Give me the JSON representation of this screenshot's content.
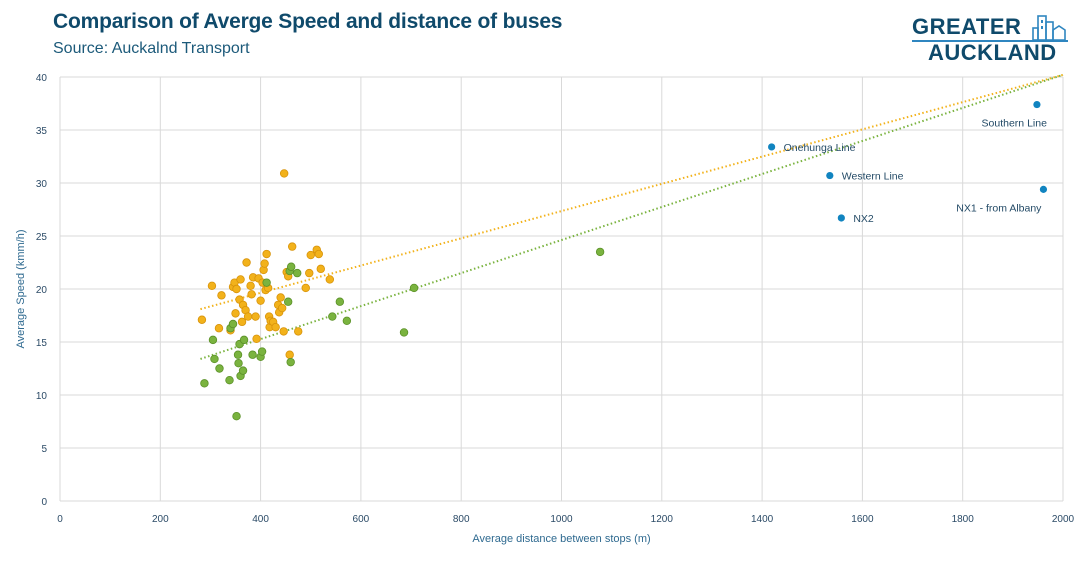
{
  "header": {
    "title": "Comparison of Averge Speed and distance of buses",
    "subtitle": "Source: Auckalnd Transport"
  },
  "logo": {
    "line1": "GREATER",
    "line2": "AUCKLAND",
    "icon": "city-buildings-icon"
  },
  "colors": {
    "title": "#0f4a6b",
    "orange": "#f2b21b",
    "orange_edge": "#d8930a",
    "green": "#7ab33f",
    "green_edge": "#5b9128",
    "blue": "#1184c0",
    "grid": "#d9d9d9"
  },
  "chart_data": {
    "type": "scatter",
    "title": "Comparison of Averge Speed and distance of buses",
    "subtitle": "Source: Auckalnd Transport",
    "xlabel": "Average distance between stops (m)",
    "ylabel": "Average Speed (kmm/h)",
    "xlim": [
      0,
      2000
    ],
    "ylim": [
      0,
      40
    ],
    "xticks": [
      0,
      200,
      400,
      600,
      800,
      1000,
      1200,
      1400,
      1600,
      1800,
      2000
    ],
    "yticks": [
      0,
      5,
      10,
      15,
      20,
      25,
      30,
      35,
      40
    ],
    "grid": true,
    "legend": "none",
    "series": [
      {
        "name": "Orange bus routes",
        "color": "#f2b21b",
        "points": [
          [
            283,
            17.1
          ],
          [
            303,
            20.3
          ],
          [
            317,
            16.3
          ],
          [
            322,
            19.4
          ],
          [
            340,
            16.1
          ],
          [
            345,
            20.2
          ],
          [
            348,
            20.6
          ],
          [
            350,
            17.7
          ],
          [
            352,
            20.0
          ],
          [
            358,
            19.0
          ],
          [
            360,
            20.9
          ],
          [
            363,
            16.9
          ],
          [
            365,
            18.5
          ],
          [
            370,
            18.0
          ],
          [
            372,
            22.5
          ],
          [
            375,
            17.4
          ],
          [
            380,
            20.3
          ],
          [
            382,
            19.5
          ],
          [
            385,
            21.1
          ],
          [
            390,
            17.4
          ],
          [
            392,
            15.3
          ],
          [
            396,
            21.0
          ],
          [
            400,
            18.9
          ],
          [
            404,
            20.6
          ],
          [
            406,
            21.8
          ],
          [
            408,
            22.4
          ],
          [
            410,
            19.9
          ],
          [
            412,
            23.3
          ],
          [
            415,
            20.1
          ],
          [
            417,
            17.4
          ],
          [
            418,
            16.4
          ],
          [
            420,
            17.0
          ],
          [
            425,
            16.9
          ],
          [
            430,
            16.4
          ],
          [
            435,
            18.5
          ],
          [
            437,
            17.8
          ],
          [
            440,
            19.2
          ],
          [
            443,
            18.2
          ],
          [
            446,
            16.0
          ],
          [
            447,
            30.9
          ],
          [
            452,
            21.6
          ],
          [
            455,
            21.2
          ],
          [
            458,
            13.8
          ],
          [
            463,
            24.0
          ],
          [
            475,
            16.0
          ],
          [
            490,
            20.1
          ],
          [
            497,
            21.5
          ],
          [
            500,
            23.2
          ],
          [
            512,
            23.7
          ],
          [
            516,
            23.3
          ],
          [
            520,
            21.9
          ],
          [
            538,
            20.9
          ]
        ]
      },
      {
        "name": "Green bus routes",
        "color": "#7ab33f",
        "points": [
          [
            288,
            11.1
          ],
          [
            305,
            15.2
          ],
          [
            308,
            13.4
          ],
          [
            318,
            12.5
          ],
          [
            338,
            11.4
          ],
          [
            340,
            16.3
          ],
          [
            345,
            16.7
          ],
          [
            352,
            8.0
          ],
          [
            355,
            13.8
          ],
          [
            356,
            13.0
          ],
          [
            358,
            14.8
          ],
          [
            360,
            11.8
          ],
          [
            365,
            12.3
          ],
          [
            367,
            15.2
          ],
          [
            384,
            13.8
          ],
          [
            400,
            13.6
          ],
          [
            403,
            14.1
          ],
          [
            412,
            20.6
          ],
          [
            455,
            18.8
          ],
          [
            458,
            21.7
          ],
          [
            460,
            13.1
          ],
          [
            461,
            22.1
          ],
          [
            473,
            21.5
          ],
          [
            543,
            17.4
          ],
          [
            558,
            18.8
          ],
          [
            572,
            17.0
          ],
          [
            686,
            15.9
          ],
          [
            706,
            20.1
          ],
          [
            1077,
            23.5
          ]
        ]
      },
      {
        "name": "Rail and NX lines",
        "color": "#1184c0",
        "points": [
          [
            1419,
            33.4,
            "Onehunga Line"
          ],
          [
            1535,
            30.7,
            "Western Line"
          ],
          [
            1558,
            26.7,
            "NX2"
          ],
          [
            1948,
            37.4,
            "Southern Line"
          ],
          [
            1961,
            29.4,
            "NX1 - from Albany"
          ]
        ]
      }
    ],
    "trendlines": [
      {
        "series": "Orange bus routes",
        "style": "dotted",
        "color": "#f2b21b",
        "from": [
          280,
          18.1
        ],
        "to": [
          2000,
          40.2
        ]
      },
      {
        "series": "Green bus routes",
        "style": "dotted",
        "color": "#7ab33f",
        "from": [
          280,
          13.4
        ],
        "to": [
          2000,
          40.2
        ]
      }
    ],
    "annotations": [
      "Onehunga Line",
      "Western Line",
      "NX2",
      "Southern Line",
      "NX1 - from Albany"
    ]
  }
}
